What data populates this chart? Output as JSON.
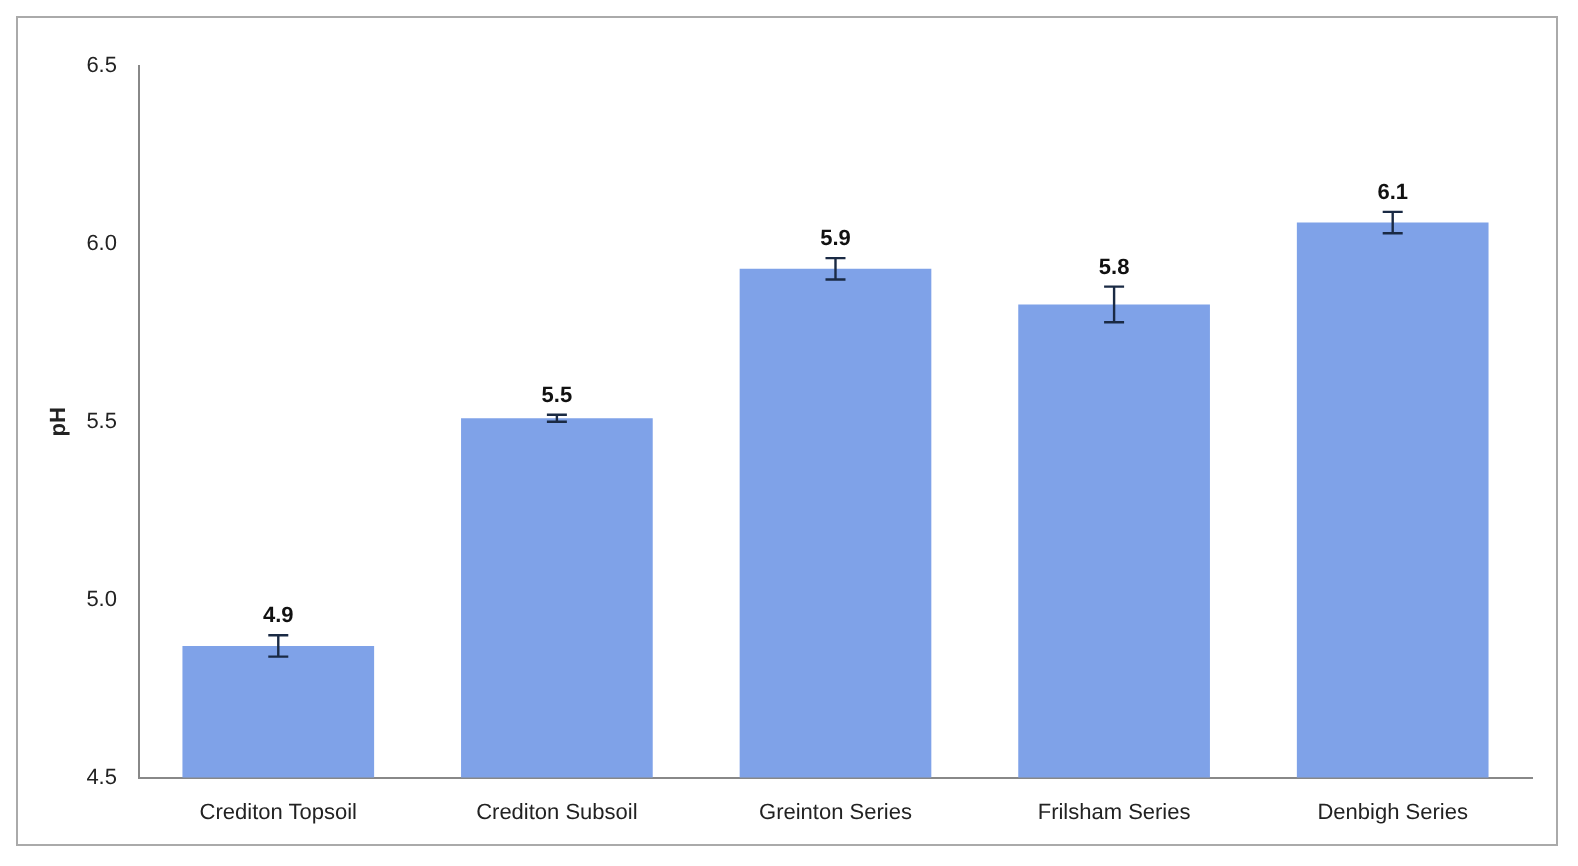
{
  "chart_data": {
    "type": "bar",
    "ylabel": "pH",
    "categories": [
      "Crediton Topsoil",
      "Crediton Subsoil",
      "Greinton Series",
      "Frilsham Series",
      "Denbigh Series"
    ],
    "values": [
      4.87,
      5.51,
      5.93,
      5.83,
      6.06
    ],
    "errors": [
      0.03,
      0.01,
      0.03,
      0.05,
      0.03
    ],
    "value_labels": [
      "4.9",
      "5.5",
      "5.9",
      "5.8",
      "6.1"
    ],
    "color": "#7fa2e8",
    "ylim": [
      4.5,
      6.5
    ],
    "yticks": [
      {
        "value": 4.5,
        "label": "4.5"
      },
      {
        "value": 5,
        "label": "5.0"
      },
      {
        "value": 5.5,
        "label": "5.5"
      },
      {
        "value": 6,
        "label": "6.0"
      },
      {
        "value": 6.5,
        "label": "6.5"
      }
    ],
    "grid": false,
    "legend": false
  }
}
